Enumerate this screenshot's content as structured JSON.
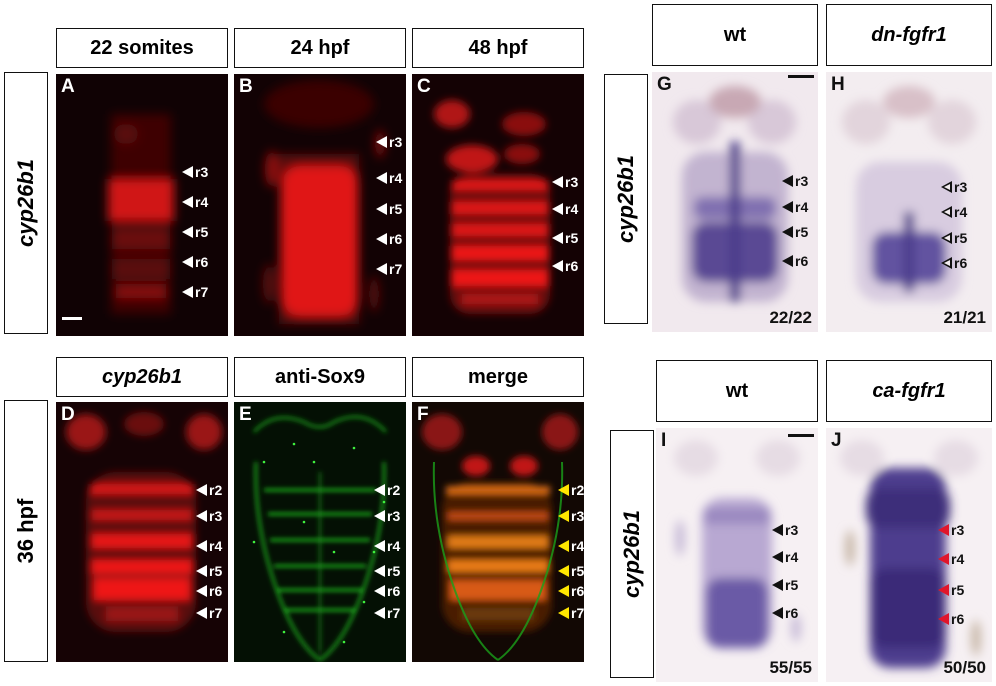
{
  "headers": {
    "a": "22 somites",
    "b": "24 hpf",
    "c": "48 hpf",
    "d": "cyp26b1",
    "e": "anti-Sox9",
    "f": "merge",
    "g": "wt",
    "h": "dn-fgfr1",
    "i": "wt",
    "j": "ca-fgfr1"
  },
  "side_labels": {
    "top_left": "cyp26b1",
    "bottom_left": "36 hpf",
    "top_right": "cyp26b1",
    "bottom_right": "cyp26b1"
  },
  "panels": {
    "A": {
      "letter": "A",
      "markers": [
        "r3",
        "r4",
        "r5",
        "r6",
        "r7"
      ]
    },
    "B": {
      "letter": "B",
      "markers": [
        "r3",
        "r4",
        "r5",
        "r6",
        "r7"
      ]
    },
    "C": {
      "letter": "C",
      "markers": [
        "r3",
        "r4",
        "r5",
        "r6"
      ]
    },
    "D": {
      "letter": "D",
      "markers": [
        "r2",
        "r3",
        "r4",
        "r5",
        "r6",
        "r7"
      ]
    },
    "E": {
      "letter": "E",
      "markers": [
        "r2",
        "r3",
        "r4",
        "r5",
        "r6",
        "r7"
      ]
    },
    "F": {
      "letter": "F",
      "markers": [
        "r2",
        "r3",
        "r4",
        "r5",
        "r6",
        "r7"
      ]
    },
    "G": {
      "letter": "G",
      "markers": [
        "r3",
        "r4",
        "r5",
        "r6"
      ],
      "count": "22/22"
    },
    "H": {
      "letter": "H",
      "markers": [
        "r3",
        "r4",
        "r5",
        "r6"
      ],
      "count": "21/21"
    },
    "I": {
      "letter": "I",
      "markers": [
        "r3",
        "r4",
        "r5",
        "r6"
      ],
      "count": "55/55"
    },
    "J": {
      "letter": "J",
      "markers": [
        "r3",
        "r4",
        "r5",
        "r6"
      ],
      "count": "50/50"
    }
  },
  "colors": {
    "fluor_red": "#ff1a1a",
    "fluor_green": "#22dd22",
    "stain_purple": "#4a3a8a",
    "arrow_white": "#ffffff",
    "arrow_black": "#111111",
    "arrow_red": "#e0162b",
    "arrow_yellow": "#ffe600"
  }
}
